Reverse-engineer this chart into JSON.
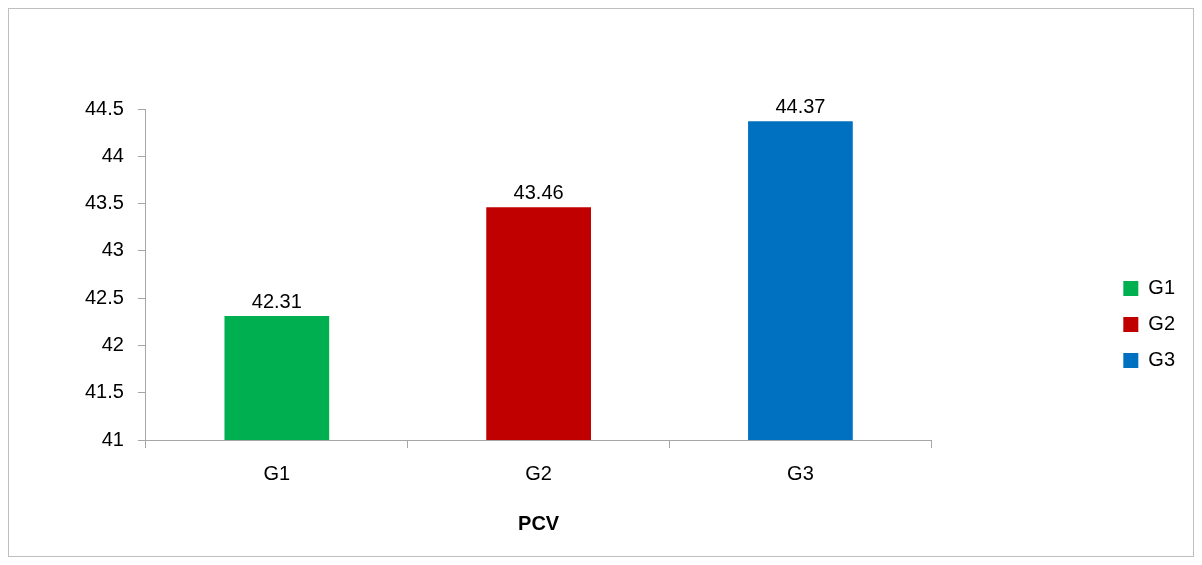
{
  "chart_data": {
    "type": "bar",
    "categories": [
      "G1",
      "G2",
      "G3"
    ],
    "series": [
      {
        "name": "G1",
        "color": "#00b050",
        "values": [
          42.31,
          null,
          null
        ]
      },
      {
        "name": "G2",
        "color": "#c00000",
        "values": [
          null,
          43.46,
          null
        ]
      },
      {
        "name": "G3",
        "color": "#0070c0",
        "values": [
          null,
          null,
          44.37
        ]
      }
    ],
    "xlabel": "PCV",
    "ylim": [
      41,
      44.5
    ],
    "yticks": [
      41,
      41.5,
      42,
      42.5,
      43,
      43.5,
      44,
      44.5
    ],
    "data_labels": true,
    "legend": "right",
    "grid": false
  }
}
